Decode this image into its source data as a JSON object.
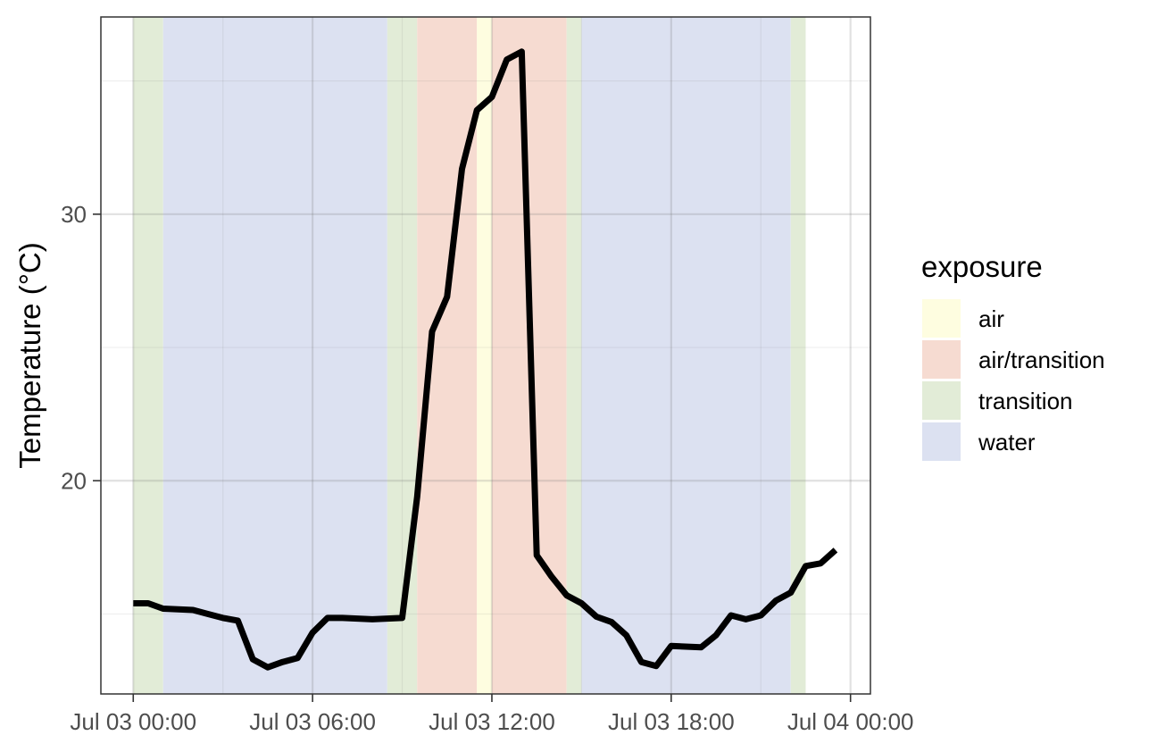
{
  "chart_data": {
    "type": "line",
    "title": "",
    "xlabel": "",
    "ylabel": "Temperature (°C)",
    "x_ticks": [
      "Jul 03 00:00",
      "Jul 03 06:00",
      "Jul 03 12:00",
      "Jul 03 18:00",
      "Jul 04 00:00"
    ],
    "x_tick_hours": [
      0,
      6,
      12,
      18,
      24
    ],
    "y_ticks": [
      20,
      30
    ],
    "xlim": [
      "Jul 02 22:55",
      "Jul 04 00:40"
    ],
    "ylim": [
      12.0,
      37.4
    ],
    "grid": true,
    "legend": {
      "title": "exposure",
      "position": "right",
      "entries": [
        {
          "label": "air",
          "color": "#fefde0"
        },
        {
          "label": "air/transition",
          "color": "#f6dbd1"
        },
        {
          "label": "transition",
          "color": "#e2ecd7"
        },
        {
          "label": "water",
          "color": "#dce1f1"
        }
      ]
    },
    "exposure_periods": [
      {
        "exposure": "transition",
        "start": "Jul 03 00:00",
        "end": "Jul 03 01:00"
      },
      {
        "exposure": "water",
        "start": "Jul 03 01:00",
        "end": "Jul 03 08:30"
      },
      {
        "exposure": "transition",
        "start": "Jul 03 08:30",
        "end": "Jul 03 09:30"
      },
      {
        "exposure": "air/transition",
        "start": "Jul 03 09:30",
        "end": "Jul 03 11:30"
      },
      {
        "exposure": "air",
        "start": "Jul 03 11:30",
        "end": "Jul 03 12:00"
      },
      {
        "exposure": "air/transition",
        "start": "Jul 03 12:00",
        "end": "Jul 03 14:30"
      },
      {
        "exposure": "transition",
        "start": "Jul 03 14:30",
        "end": "Jul 03 15:00"
      },
      {
        "exposure": "water",
        "start": "Jul 03 15:00",
        "end": "Jul 03 22:00"
      },
      {
        "exposure": "transition",
        "start": "Jul 03 22:00",
        "end": "Jul 03 22:30"
      }
    ],
    "series": [
      {
        "color": "#000000",
        "x": [
          "Jul 03 00:00",
          "Jul 03 00:30",
          "Jul 03 01:00",
          "Jul 03 02:00",
          "Jul 03 02:30",
          "Jul 03 03:00",
          "Jul 03 03:30",
          "Jul 03 04:00",
          "Jul 03 04:30",
          "Jul 03 05:00",
          "Jul 03 05:30",
          "Jul 03 06:00",
          "Jul 03 06:30",
          "Jul 03 07:00",
          "Jul 03 08:00",
          "Jul 03 09:00",
          "Jul 03 09:30",
          "Jul 03 10:00",
          "Jul 03 10:30",
          "Jul 03 11:00",
          "Jul 03 11:30",
          "Jul 03 12:00",
          "Jul 03 12:30",
          "Jul 03 13:00",
          "Jul 03 13:30",
          "Jul 03 14:00",
          "Jul 03 14:30",
          "Jul 03 15:00",
          "Jul 03 15:30",
          "Jul 03 16:00",
          "Jul 03 16:30",
          "Jul 03 17:00",
          "Jul 03 17:30",
          "Jul 03 18:00",
          "Jul 03 19:00",
          "Jul 03 19:30",
          "Jul 03 20:00",
          "Jul 03 20:30",
          "Jul 03 21:00",
          "Jul 03 21:30",
          "Jul 03 22:00",
          "Jul 03 22:30",
          "Jul 03 23:00",
          "Jul 03 23:30"
        ],
        "values": [
          15.4,
          15.4,
          15.2,
          15.15,
          15.0,
          14.85,
          14.75,
          13.3,
          13.0,
          13.2,
          13.35,
          14.3,
          14.85,
          14.85,
          14.8,
          14.85,
          19.4,
          25.6,
          26.9,
          31.7,
          33.9,
          34.4,
          35.8,
          36.1,
          17.2,
          16.4,
          15.7,
          15.4,
          14.9,
          14.7,
          14.2,
          13.2,
          13.05,
          13.8,
          13.75,
          14.2,
          14.95,
          14.8,
          14.95,
          15.5,
          15.8,
          16.8,
          16.9,
          17.4
        ]
      }
    ]
  }
}
